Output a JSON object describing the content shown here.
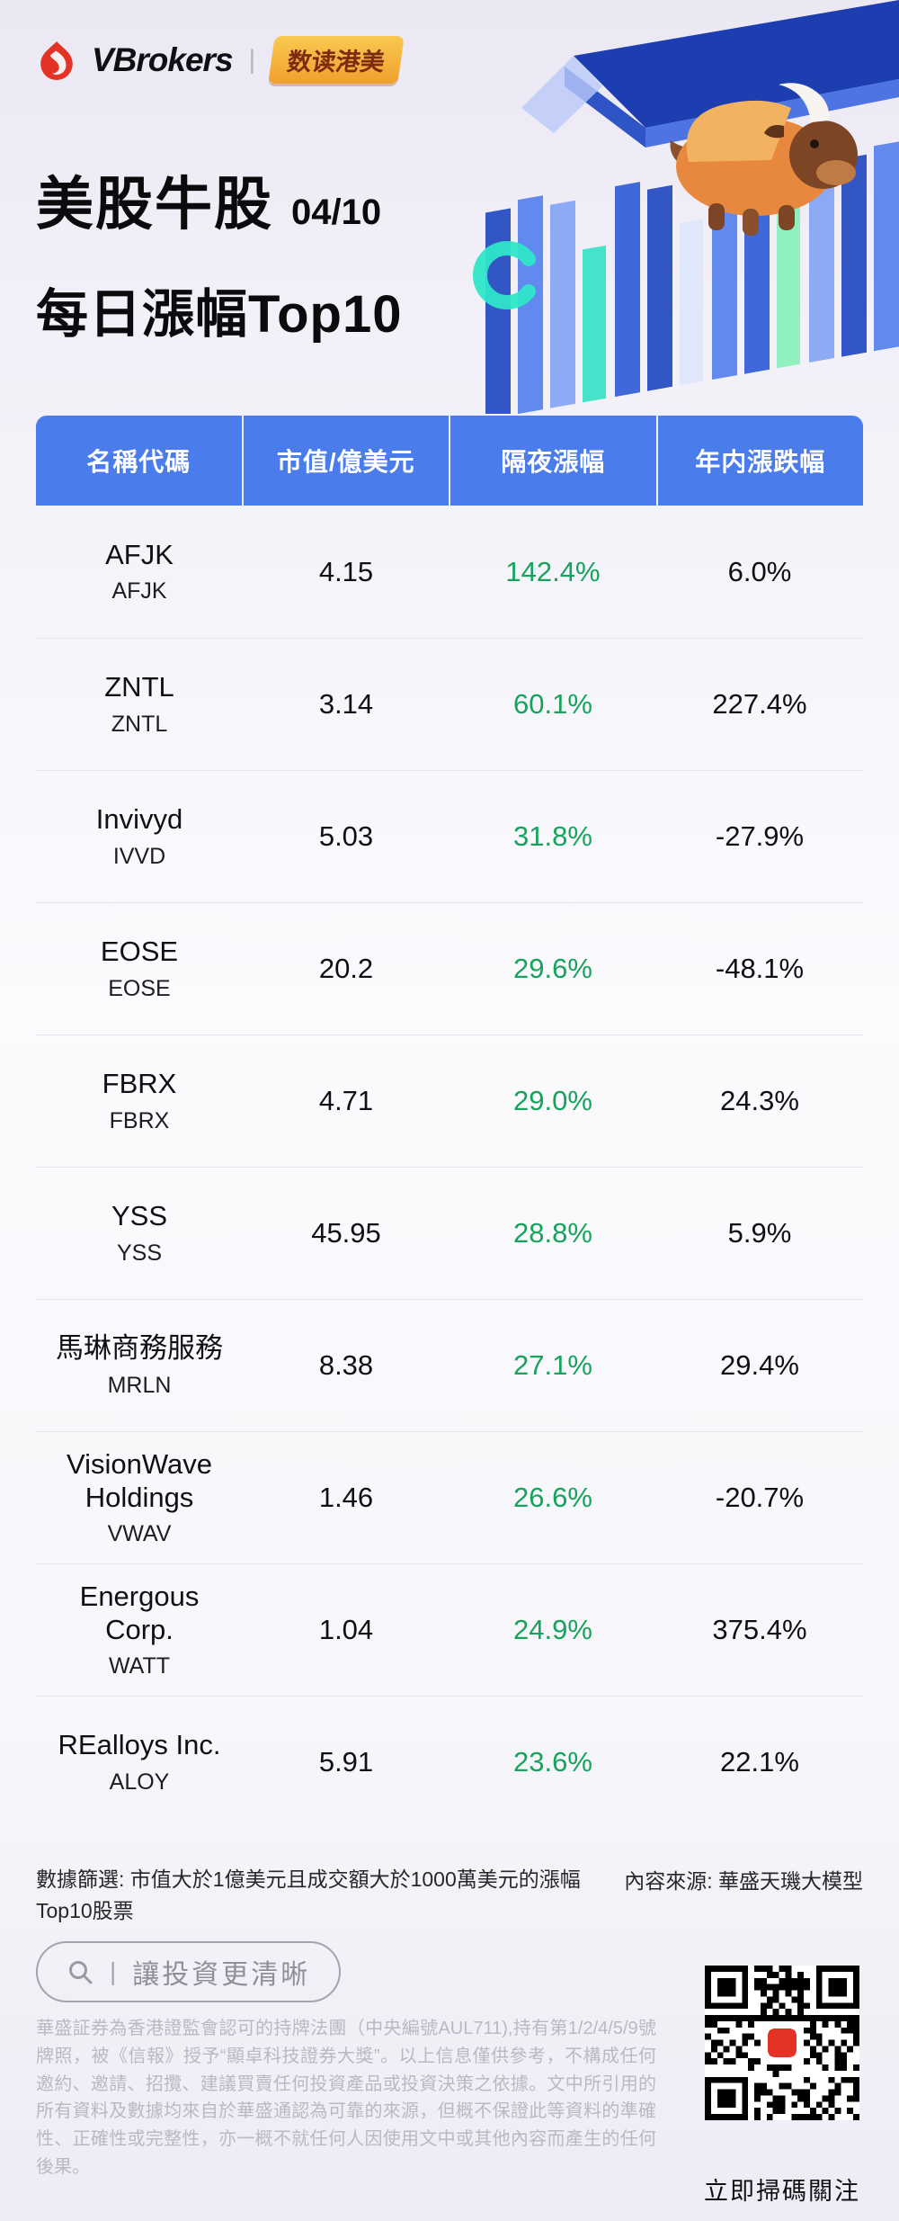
{
  "colors": {
    "header_blue": "#4b7ceb",
    "gain_green": "#16a35c",
    "brand_red": "#e43225",
    "badge_gold": "#f0a02f",
    "badge_text": "#7c2a10"
  },
  "brand": {
    "name": "VBrokers",
    "divider": "|",
    "badge": "数读港美"
  },
  "header": {
    "title": "美股牛股",
    "date": "04/10",
    "subtitle": "每日漲幅Top10"
  },
  "table": {
    "columns": [
      "名稱代碼",
      "市值/億美元",
      "隔夜漲幅",
      "年内漲跌幅"
    ],
    "rows": [
      {
        "name": "AFJK",
        "ticker": "AFJK",
        "cap": "4.15",
        "overnight": "142.4%",
        "ytd": "6.0%"
      },
      {
        "name": "ZNTL",
        "ticker": "ZNTL",
        "cap": "3.14",
        "overnight": "60.1%",
        "ytd": "227.4%"
      },
      {
        "name": "Invivyd",
        "ticker": "IVVD",
        "cap": "5.03",
        "overnight": "31.8%",
        "ytd": "-27.9%"
      },
      {
        "name": "EOSE",
        "ticker": "EOSE",
        "cap": "20.2",
        "overnight": "29.6%",
        "ytd": "-48.1%"
      },
      {
        "name": "FBRX",
        "ticker": "FBRX",
        "cap": "4.71",
        "overnight": "29.0%",
        "ytd": "24.3%"
      },
      {
        "name": "YSS",
        "ticker": "YSS",
        "cap": "45.95",
        "overnight": "28.8%",
        "ytd": "5.9%"
      },
      {
        "name": "馬琳商務服務",
        "ticker": "MRLN",
        "cap": "8.38",
        "overnight": "27.1%",
        "ytd": "29.4%"
      },
      {
        "name": "VisionWave Holdings",
        "ticker": "VWAV",
        "cap": "1.46",
        "overnight": "26.6%",
        "ytd": "-20.7%"
      },
      {
        "name": "Energous Corp.",
        "ticker": "WATT",
        "cap": "1.04",
        "overnight": "24.9%",
        "ytd": "375.4%"
      },
      {
        "name": "REalloys Inc.",
        "ticker": "ALOY",
        "cap": "5.91",
        "overnight": "23.6%",
        "ytd": "22.1%"
      }
    ]
  },
  "chart_data": {
    "type": "table",
    "title": "美股牛股 04/10 每日漲幅Top10",
    "columns": [
      "名稱代碼",
      "市值/億美元",
      "隔夜漲幅",
      "年内漲跌幅"
    ],
    "rows": [
      [
        "AFJK / AFJK",
        4.15,
        "142.4%",
        "6.0%"
      ],
      [
        "ZNTL / ZNTL",
        3.14,
        "60.1%",
        "227.4%"
      ],
      [
        "Invivyd / IVVD",
        5.03,
        "31.8%",
        "-27.9%"
      ],
      [
        "EOSE / EOSE",
        20.2,
        "29.6%",
        "-48.1%"
      ],
      [
        "FBRX / FBRX",
        4.71,
        "29.0%",
        "24.3%"
      ],
      [
        "YSS / YSS",
        45.95,
        "28.8%",
        "5.9%"
      ],
      [
        "馬琳商務服務 / MRLN",
        8.38,
        "27.1%",
        "29.4%"
      ],
      [
        "VisionWave Holdings / VWAV",
        1.46,
        "26.6%",
        "-20.7%"
      ],
      [
        "Energous Corp. / WATT",
        1.04,
        "24.9%",
        "375.4%"
      ],
      [
        "REalloys Inc. / ALOY",
        5.91,
        "23.6%",
        "22.1%"
      ]
    ]
  },
  "footer": {
    "filter_note": "數據篩選: 市值大於1億美元且成交額大於1000萬美元的漲幅Top10股票",
    "source_note": "內容來源: 華盛天璣大模型",
    "search_slogan": "讓投資更清晰",
    "pill_divider": "|",
    "disclaimer": "華盛証券為香港證監會認可的持牌法團（中央編號AUL711),持有第1/2/4/5/9號牌照，被《信報》授予“顯卓科技證券大獎”。以上信息僅供參考，不構成任何邀約、邀請、招攬、建議買賣任何投資產品或投資決策之依據。文中所引用的所有資料及數據均來自於華盛通認為可靠的來源，但概不保證此等資料的準確性、正確性或完整性，亦一概不就任何人因使用文中或其他內容而產生的任何後果。",
    "qr_caption": "立即掃碼關注"
  }
}
